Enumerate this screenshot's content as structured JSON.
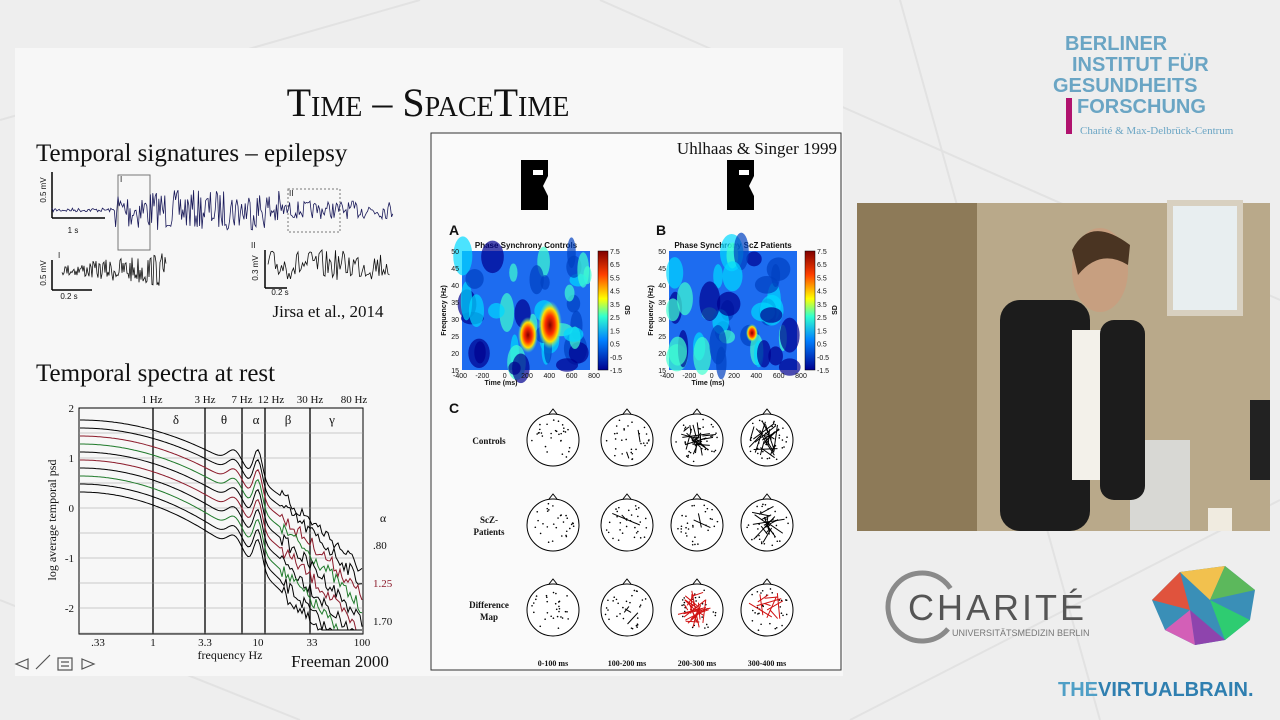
{
  "slide": {
    "title": "Time – SpaceTime",
    "epilepsy": {
      "heading": "Temporal signatures – epilepsy",
      "main_amp": "0.5 mV",
      "main_time": "1 s",
      "box_one": "I",
      "box_two": "II",
      "inset_one_label": "I",
      "inset_one_amp": "0.5 mV",
      "inset_one_time": "0.2 s",
      "inset_two_label": "II",
      "inset_two_amp": "0.3 mV",
      "inset_two_time": "0.2 s",
      "citation": "Jirsa et al., 2014"
    },
    "spectra": {
      "heading": "Temporal spectra at rest",
      "top_ticks": [
        "1 Hz",
        "3 Hz",
        "7 Hz",
        "12 Hz",
        "30 Hz",
        "80 Hz"
      ],
      "bands": [
        "δ",
        "θ",
        "α",
        "β",
        "γ"
      ],
      "y_ticks": [
        "2",
        "1",
        "0",
        "-1",
        "-2"
      ],
      "y_label": "log average temporal psd",
      "x_ticks": [
        ".33",
        "1",
        "3.3",
        "10",
        "33",
        "100"
      ],
      "x_label": "frequency Hz",
      "alpha_label": "α",
      "right_ticks": [
        ".80",
        "1.25",
        "1.70"
      ],
      "citation": "Freeman 2000"
    },
    "synchrony": {
      "citation": "Uhlhaas & Singer 1999",
      "panels": [
        {
          "letter": "A",
          "title": "Phase Synchrony Controls"
        },
        {
          "letter": "B",
          "title": "Phase Synchrony ScZ Patients"
        }
      ],
      "freq_ticks": [
        "50",
        "45",
        "40",
        "35",
        "30",
        "25",
        "20",
        "15"
      ],
      "time_ticks": [
        "-400",
        "-200",
        "0",
        "200",
        "400",
        "600",
        "800"
      ],
      "freq_label": "Frequency (Hz)",
      "time_label": "Time (ms)",
      "colorbar_ticks": [
        "7.5",
        "6.5",
        "5.5",
        "4.5",
        "3.5",
        "2.5",
        "1.5",
        "0.5",
        "-0.5",
        "-1.5"
      ],
      "colorbar_label": "SD",
      "c_letter": "C",
      "rows": [
        [
          "Controls"
        ],
        [
          "ScZ-",
          "Patients"
        ],
        [
          "Difference",
          "Map"
        ]
      ],
      "columns": [
        "0-100 ms",
        "100-200 ms",
        "200-300 ms",
        "300-400 ms"
      ]
    }
  },
  "logos": {
    "bih": [
      "BERLINER",
      "INSTITUT FÜR",
      "GESUNDHEITS",
      "FORSCHUNG"
    ],
    "bih_sub": "Charité & Max-Delbrück-Centrum",
    "charite": "CHARITÉ",
    "charite_sub": "UNIVERSITÄTSMEDIZIN BERLIN",
    "tvb_a": "THE",
    "tvb_b": "VIRTUALBRAIN."
  }
}
